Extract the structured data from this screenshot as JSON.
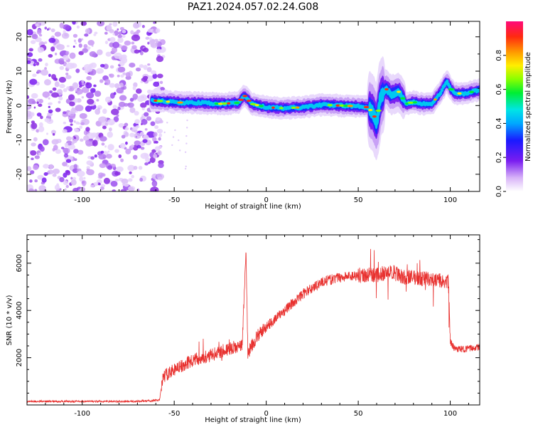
{
  "figure": {
    "title": "PAZ1.2024.057.02.24.G08"
  },
  "chart_data": [
    {
      "type": "heatmap",
      "title": "PAZ1.2024.057.02.24.G08",
      "xlabel": "Height of straight line (km)",
      "ylabel": "Frequency (Hz)",
      "xlim": [
        -130,
        116
      ],
      "ylim": [
        -25,
        24.5
      ],
      "xticks": [
        -100,
        -50,
        0,
        50,
        100
      ],
      "yticks": [
        -20,
        -10,
        0,
        10,
        20
      ],
      "colorbar": {
        "label": "Normalized spectral amplitude",
        "range": [
          0,
          1
        ],
        "ticks": [
          "0.0",
          "0.2",
          "0.4",
          "0.6",
          "0.8"
        ],
        "colormap": "white-purple-blue-cyan-green-yellow-orange-red-magenta"
      },
      "ridge": {
        "x": [
          -62,
          -55,
          -45,
          -35,
          -25,
          -15,
          -12,
          -8,
          0,
          10,
          20,
          30,
          40,
          50,
          55,
          58,
          60,
          62,
          65,
          68,
          72,
          76,
          80,
          85,
          90,
          95,
          98,
          102,
          108,
          116
        ],
        "y": [
          1.5,
          1.2,
          0.8,
          0.8,
          0.5,
          0.8,
          3.0,
          0.5,
          -0.5,
          -0.8,
          -0.5,
          0.2,
          0.0,
          -0.2,
          -0.5,
          -2.0,
          -5.0,
          2.0,
          5.0,
          3.0,
          4.0,
          0.5,
          1.0,
          0.5,
          0.5,
          4.0,
          7.0,
          3.5,
          3.5,
          4.5
        ]
      },
      "noise_region_x": [
        -130,
        -60
      ],
      "grid": false
    },
    {
      "type": "line",
      "xlabel": "Height of straight line (km)",
      "ylabel": "SNR (10 * v/v)",
      "xlim": [
        -130,
        116
      ],
      "ylim": [
        0,
        7200
      ],
      "xticks": [
        -100,
        -50,
        0,
        50,
        100
      ],
      "yticks": [
        2000,
        4000,
        6000
      ],
      "color": "#e8312f",
      "envelope": {
        "x": [
          -130,
          -100,
          -70,
          -58,
          -56,
          -50,
          -40,
          -30,
          -20,
          -13,
          -11,
          -10,
          -5,
          0,
          10,
          20,
          30,
          40,
          50,
          60,
          65,
          70,
          75,
          80,
          90,
          99,
          100,
          102,
          106,
          116
        ],
        "y": [
          150,
          150,
          150,
          200,
          1200,
          1500,
          1900,
          2100,
          2400,
          2500,
          6700,
          2200,
          2900,
          3300,
          4000,
          4700,
          5200,
          5400,
          5500,
          5500,
          5600,
          5600,
          5400,
          5400,
          5300,
          5200,
          2700,
          2400,
          2350,
          2450
        ]
      },
      "grid": false
    }
  ]
}
